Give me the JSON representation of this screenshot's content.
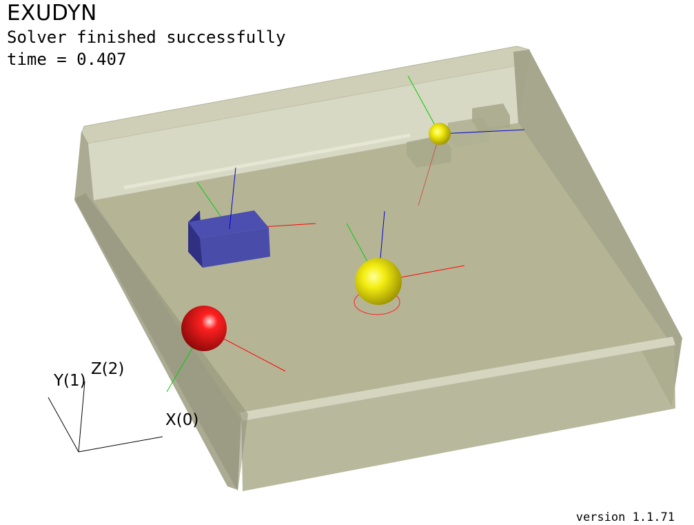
{
  "app": {
    "title": "EXUDYN",
    "status": "Solver finished successfully",
    "time_label": "time = 0.407",
    "version": "version 1.1.71"
  },
  "axes": {
    "x_label": "X(0)",
    "y_label": "Y(1)",
    "z_label": "Z(2)"
  },
  "colors": {
    "background": "#ffffff",
    "container": "#b9b99a",
    "floor": "#b4b595",
    "cube": "#4a4caa",
    "sphere_red": "#e01010",
    "sphere_yellow": "#e8e000",
    "axis_red": "#ff0000",
    "axis_green": "#00cc00",
    "axis_blue": "#0000cc"
  }
}
